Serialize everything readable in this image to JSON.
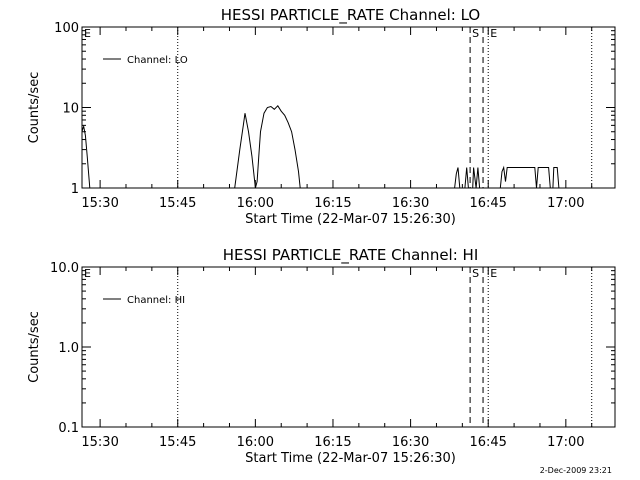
{
  "chart_data": [
    {
      "type": "line",
      "title": "HESSI PARTICLE_RATE Channel: LO",
      "xlabel": "Start Time (22-Mar-07 15:26:30)",
      "ylabel": "Counts/sec",
      "yscale": "log",
      "xlim": [
        "15:26:30",
        "17:09:30"
      ],
      "ylim": [
        1,
        100
      ],
      "xticks": [
        "15:30",
        "15:45",
        "16:00",
        "16:15",
        "16:30",
        "16:45",
        "17:00"
      ],
      "yticks": [
        "1",
        "10",
        "100"
      ],
      "legend": "top-left",
      "grid": false,
      "series": [
        {
          "name": "Channel: LO",
          "points": [
            [
              "15:26:30",
              5
            ],
            [
              "15:26:40",
              5.5
            ],
            [
              "15:26:50",
              5.8
            ],
            [
              "15:27:10",
              4.5
            ],
            [
              "15:27:30",
              2.5
            ],
            [
              "15:28:00",
              1
            ],
            [
              "15:56:00",
              1
            ],
            [
              "15:57:00",
              3
            ],
            [
              "15:57:40",
              6
            ],
            [
              "15:58:00",
              8.5
            ],
            [
              "15:58:40",
              5
            ],
            [
              "15:59:20",
              2.5
            ],
            [
              "16:00:00",
              1
            ],
            [
              "16:00:20",
              1.2
            ],
            [
              "16:00:40",
              2.5
            ],
            [
              "16:01:00",
              5
            ],
            [
              "16:01:40",
              8.5
            ],
            [
              "16:02:20",
              10
            ],
            [
              "16:03:00",
              10.3
            ],
            [
              "16:03:40",
              9.5
            ],
            [
              "16:04:20",
              10.5
            ],
            [
              "16:05:00",
              9
            ],
            [
              "16:05:40",
              8
            ],
            [
              "16:06:20",
              6.5
            ],
            [
              "16:07:00",
              5
            ],
            [
              "16:07:40",
              3
            ],
            [
              "16:08:20",
              1.6
            ],
            [
              "16:08:40",
              1
            ],
            [
              "16:38:30",
              1
            ],
            [
              "16:38:50",
              1.5
            ],
            [
              "16:39:10",
              1.8
            ],
            [
              "16:39:30",
              1
            ],
            [
              "16:40:30",
              1
            ],
            [
              "16:40:50",
              1.8
            ],
            [
              "16:41:10",
              1
            ],
            [
              "16:42:00",
              1
            ],
            [
              "16:42:10",
              1.8
            ],
            [
              "16:42:40",
              1
            ],
            [
              "16:43:00",
              1.8
            ],
            [
              "16:43:20",
              1
            ],
            [
              "16:47:20",
              1
            ],
            [
              "16:47:40",
              1.6
            ],
            [
              "16:48:00",
              1.8
            ],
            [
              "16:48:20",
              1.2
            ],
            [
              "16:48:40",
              1.8
            ],
            [
              "16:49:00",
              1.8
            ],
            [
              "16:54:00",
              1.8
            ],
            [
              "16:54:20",
              1
            ],
            [
              "16:54:40",
              1.8
            ],
            [
              "16:56:40",
              1.8
            ],
            [
              "16:57:00",
              1
            ],
            [
              "16:57:30",
              1
            ],
            [
              "16:57:40",
              1.8
            ],
            [
              "16:58:20",
              1.8
            ],
            [
              "16:58:40",
              1
            ]
          ]
        }
      ],
      "vlines": [
        {
          "time": "15:45:00",
          "style": "dotted",
          "label": ""
        },
        {
          "time": "16:41:30",
          "style": "dashed",
          "label": "S"
        },
        {
          "time": "16:44:00",
          "style": "dashed",
          "label": ""
        },
        {
          "time": "16:45:00",
          "style": "dotted",
          "label": "E"
        },
        {
          "time": "17:05:00",
          "style": "dotted",
          "label": ""
        }
      ],
      "corner_label": "E"
    },
    {
      "type": "line",
      "title": "HESSI PARTICLE_RATE Channel: HI",
      "xlabel": "Start Time (22-Mar-07 15:26:30)",
      "ylabel": "Counts/sec",
      "yscale": "log",
      "xlim": [
        "15:26:30",
        "17:09:30"
      ],
      "ylim": [
        0.1,
        10
      ],
      "xticks": [
        "15:30",
        "15:45",
        "16:00",
        "16:15",
        "16:30",
        "16:45",
        "17:00"
      ],
      "yticks": [
        "0.1",
        "1.0",
        "10.0"
      ],
      "legend": "top-left",
      "grid": false,
      "series": [
        {
          "name": "Channel: HI",
          "points": []
        }
      ],
      "vlines": [
        {
          "time": "15:45:00",
          "style": "dotted",
          "label": ""
        },
        {
          "time": "16:41:30",
          "style": "dashed",
          "label": "S"
        },
        {
          "time": "16:44:00",
          "style": "dashed",
          "label": ""
        },
        {
          "time": "16:45:00",
          "style": "dotted",
          "label": "E"
        },
        {
          "time": "17:05:00",
          "style": "dotted",
          "label": ""
        }
      ],
      "corner_label": "E"
    }
  ],
  "footer": {
    "timestamp": "2-Dec-2009 23:21"
  }
}
